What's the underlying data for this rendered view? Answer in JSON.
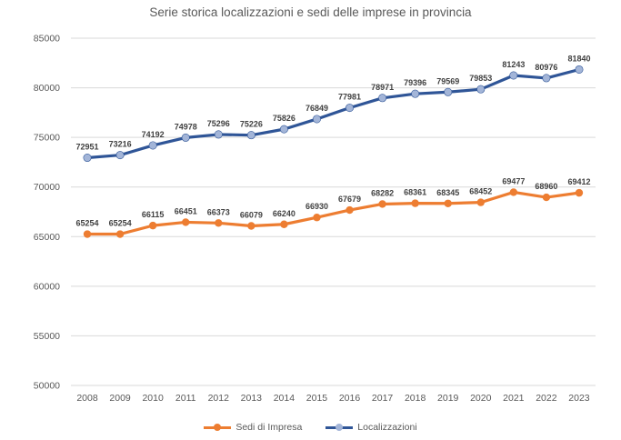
{
  "chart_data": {
    "type": "line",
    "title": "Serie storica localizzazioni e sedi delle imprese in provincia",
    "categories": [
      "2008",
      "2009",
      "2010",
      "2011",
      "2012",
      "2013",
      "2014",
      "2015",
      "2016",
      "2017",
      "2018",
      "2019",
      "2020",
      "2021",
      "2022",
      "2023"
    ],
    "series": [
      {
        "name": "Sedi di Impresa",
        "color": "#ED7D31",
        "marker_fill": "#ED7D31",
        "values": [
          65254,
          65254,
          66115,
          66451,
          66373,
          66079,
          66240,
          66930,
          67679,
          68282,
          68361,
          68345,
          68452,
          69477,
          68960,
          69412
        ]
      },
      {
        "name": "Localizzazioni",
        "color": "#2F5597",
        "marker_fill": "#A3B5D8",
        "values": [
          72951,
          73216,
          74192,
          74978,
          75296,
          75226,
          75826,
          76849,
          77981,
          78971,
          79396,
          79569,
          79853,
          81243,
          80976,
          81840
        ]
      }
    ],
    "ylim": [
      50000,
      85000
    ],
    "yticks": [
      85000,
      80000,
      75000,
      70000,
      65000,
      60000,
      55000,
      50000
    ],
    "grid": true,
    "legend_position": "bottom",
    "data_labels": true
  },
  "style": {
    "grid_color": "#D9D9D9",
    "tick_color": "#595959",
    "data_label_color": "#404040",
    "title_color": "#595959",
    "background": "#FFFFFF"
  }
}
